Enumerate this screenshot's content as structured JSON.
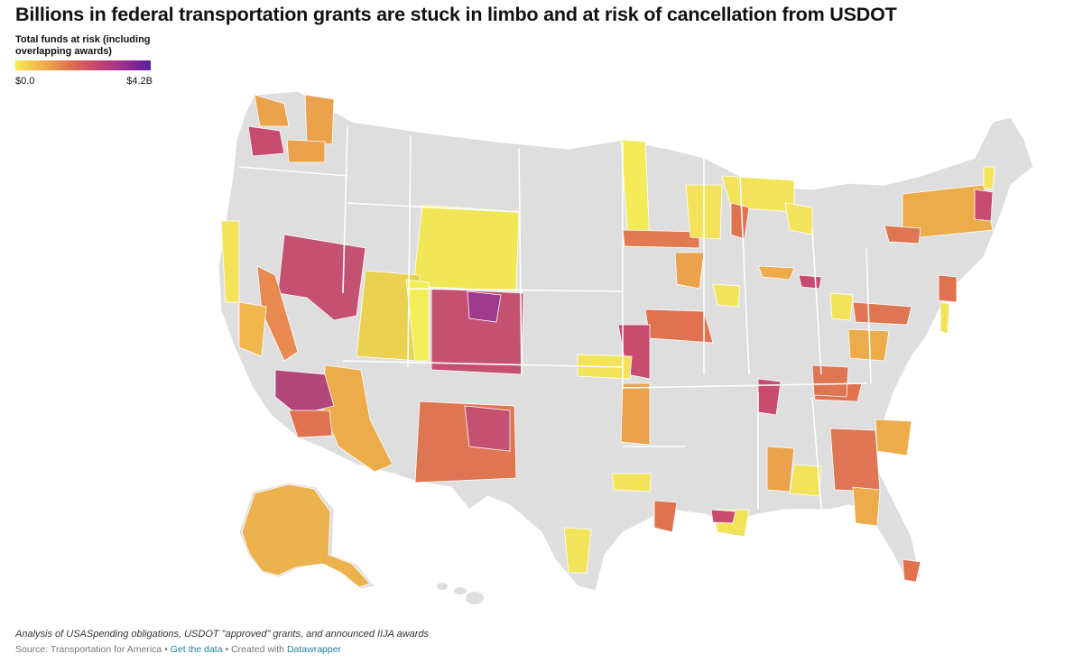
{
  "title": "Billions in federal transportation grants are stuck in limbo and at risk of cancellation from USDOT",
  "legend": {
    "title_line1": "Total funds at risk (including",
    "title_line2": "overlapping awards)",
    "min_label": "$0.0",
    "max_label": "$4.2B",
    "colors": [
      "#f2ea55",
      "#f0b24a",
      "#e0724e",
      "#c9456f",
      "#9c2e8c",
      "#5a1fa0"
    ]
  },
  "footer": {
    "note": "Analysis of USASpending obligations, USDOT \"approved\" grants, and announced IIJA awards",
    "source_prefix": "Source: Transportation for America • ",
    "get_data": "Get the data",
    "sep": " • Created with ",
    "datawrapper": "Datawrapper"
  },
  "map": {
    "base_color": "#dedede",
    "border_color": "#ffffff",
    "scale": {
      "min": 0.0,
      "max": 4.2,
      "unit": "billion USD"
    }
  }
}
